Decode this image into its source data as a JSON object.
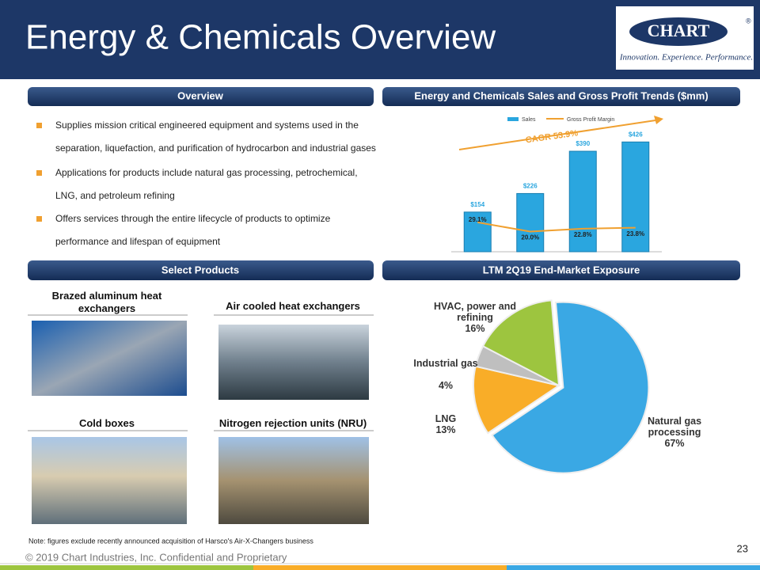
{
  "header": {
    "title": "Energy & Chemicals Overview",
    "logo": "CHART",
    "registered": "®",
    "tagline": "Innovation. Experience. Performance."
  },
  "overview": {
    "heading": "Overview",
    "bullets": [
      "Supplies mission critical engineered equipment and systems used in the separation, liquefaction, and purification of hydrocarbon and industrial gases",
      "Applications for products include natural gas processing, petrochemical, LNG, and petroleum refining",
      "Offers services through the entire lifecycle of products to optimize performance and lifespan of equipment"
    ]
  },
  "products": {
    "heading": "Select Products",
    "items": [
      "Brazed aluminum heat exchangers",
      "Air cooled heat exchangers",
      "Cold boxes",
      "Nitrogen rejection units (NRU)"
    ]
  },
  "chart_data": [
    {
      "type": "bar",
      "title": "Energy and Chemicals Sales and Gross Profit Trends ($mm)",
      "categories": [
        null,
        null,
        null,
        null
      ],
      "series": [
        {
          "name": "Sales",
          "color": "#2aa6df",
          "values": [
            154,
            226,
            390,
            426
          ],
          "value_labels": [
            "$154",
            "$226",
            "$390",
            "$426"
          ]
        },
        {
          "name": "Gross Profit Margin",
          "type": "line",
          "axis": "y2",
          "color": "#f0a030",
          "values": [
            29.1,
            20.0,
            22.8,
            23.8
          ],
          "value_labels": [
            "29.1%",
            "20.0%",
            "22.8%",
            "23.8%"
          ]
        }
      ],
      "ylim": [
        0,
        470
      ],
      "y2lim": [
        0,
        120
      ],
      "annotation": "CAGR 53.9%"
    },
    {
      "type": "pie",
      "title": "LTM 2Q19 End-Market Exposure",
      "categories": [
        "Natural gas processing",
        "LNG",
        "Industrial gas",
        "HVAC, power and refining"
      ],
      "values": [
        67,
        13,
        4,
        16
      ],
      "value_labels": [
        "67%",
        "13%",
        "4%",
        "16%"
      ],
      "colors": [
        "#3aa8e4",
        "#f9ad28",
        "#bfbfbf",
        "#9dc53f"
      ]
    }
  ],
  "note": "Note: figures exclude recently announced acquisition of Harsco's Air-X-Changers business",
  "page_number": "23",
  "footer": "© 2019 Chart Industries, Inc. Confidential and Proprietary"
}
